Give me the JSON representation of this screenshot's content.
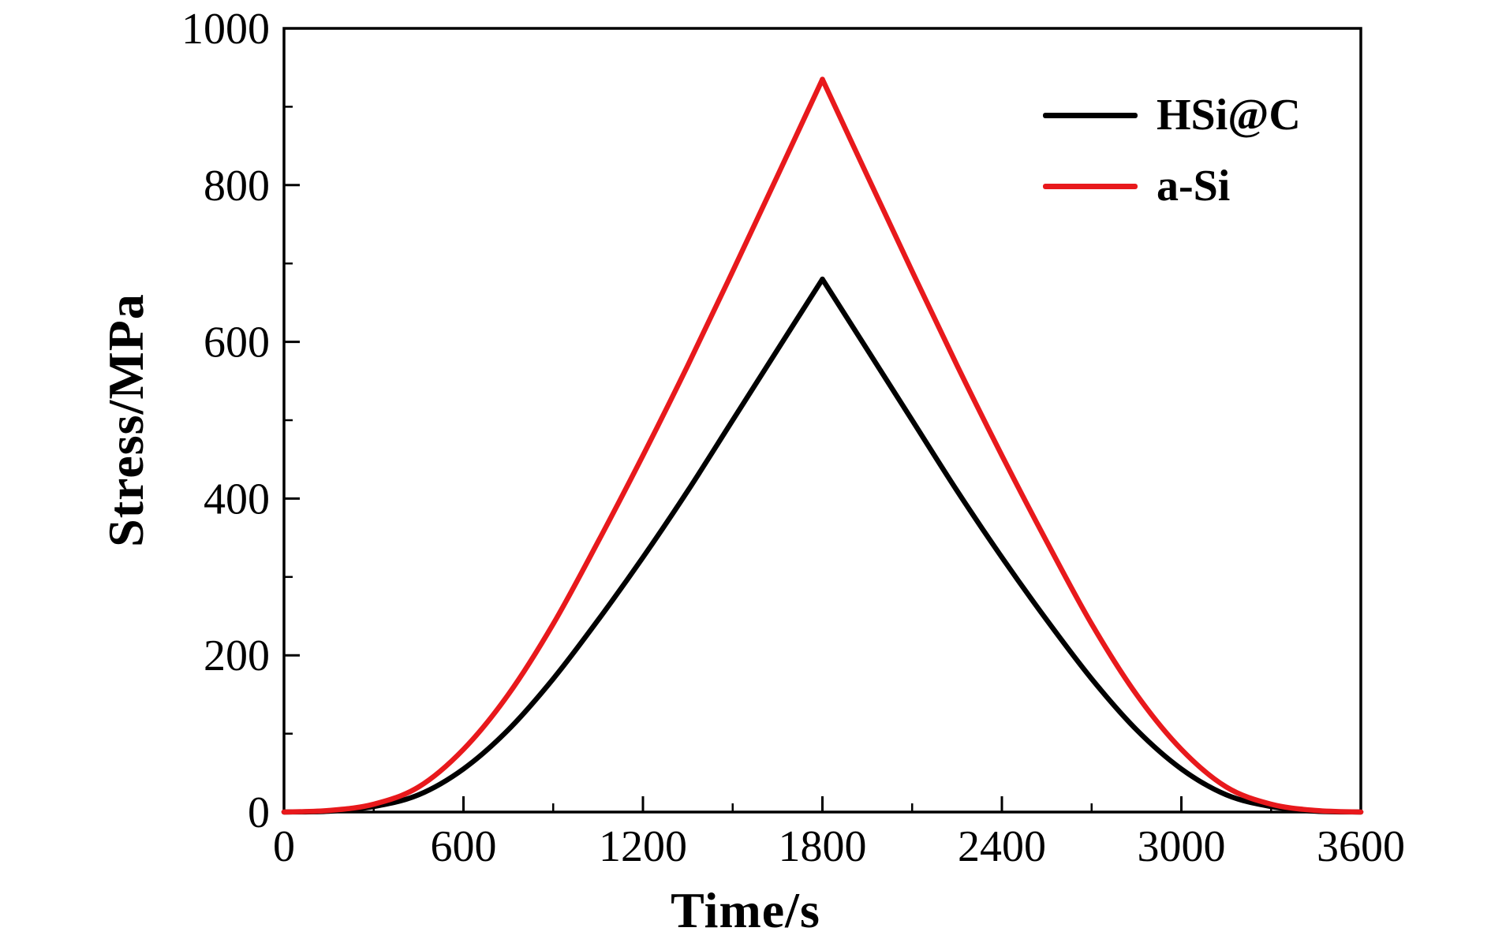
{
  "chart_data": {
    "type": "line",
    "title": "",
    "xlabel": "Time/s",
    "ylabel": "Stress/MPa",
    "xlim": [
      0,
      3600
    ],
    "ylim": [
      0,
      1000
    ],
    "x_major_ticks": [
      0,
      600,
      1200,
      1800,
      2400,
      3000,
      3600
    ],
    "x_minor_ticks": [
      300,
      900,
      1500,
      2100,
      2700,
      3300
    ],
    "y_major_ticks": [
      0,
      200,
      400,
      600,
      800,
      1000
    ],
    "y_minor_ticks": [
      100,
      300,
      500,
      700,
      900
    ],
    "grid": false,
    "legend_position": "upper right",
    "x": [
      0,
      150,
      300,
      450,
      600,
      750,
      900,
      1050,
      1200,
      1350,
      1500,
      1650,
      1800,
      1950,
      2100,
      2250,
      2400,
      2550,
      2700,
      2850,
      3000,
      3150,
      3300,
      3450,
      3600
    ],
    "series": [
      {
        "name": "HSi@C",
        "color": "#000000",
        "values": [
          0,
          1,
          7,
          22,
          55,
          105,
          170,
          245,
          325,
          410,
          500,
          590,
          680,
          590,
          500,
          410,
          325,
          245,
          170,
          105,
          55,
          22,
          7,
          1,
          0
        ]
      },
      {
        "name": "a-Si",
        "color": "#e8191c",
        "values": [
          0,
          2,
          10,
          32,
          80,
          150,
          240,
          345,
          455,
          570,
          690,
          812,
          935,
          812,
          690,
          570,
          455,
          345,
          240,
          150,
          80,
          32,
          10,
          2,
          0
        ]
      }
    ]
  },
  "colors": {
    "axis": "#000000",
    "background": "#ffffff"
  }
}
